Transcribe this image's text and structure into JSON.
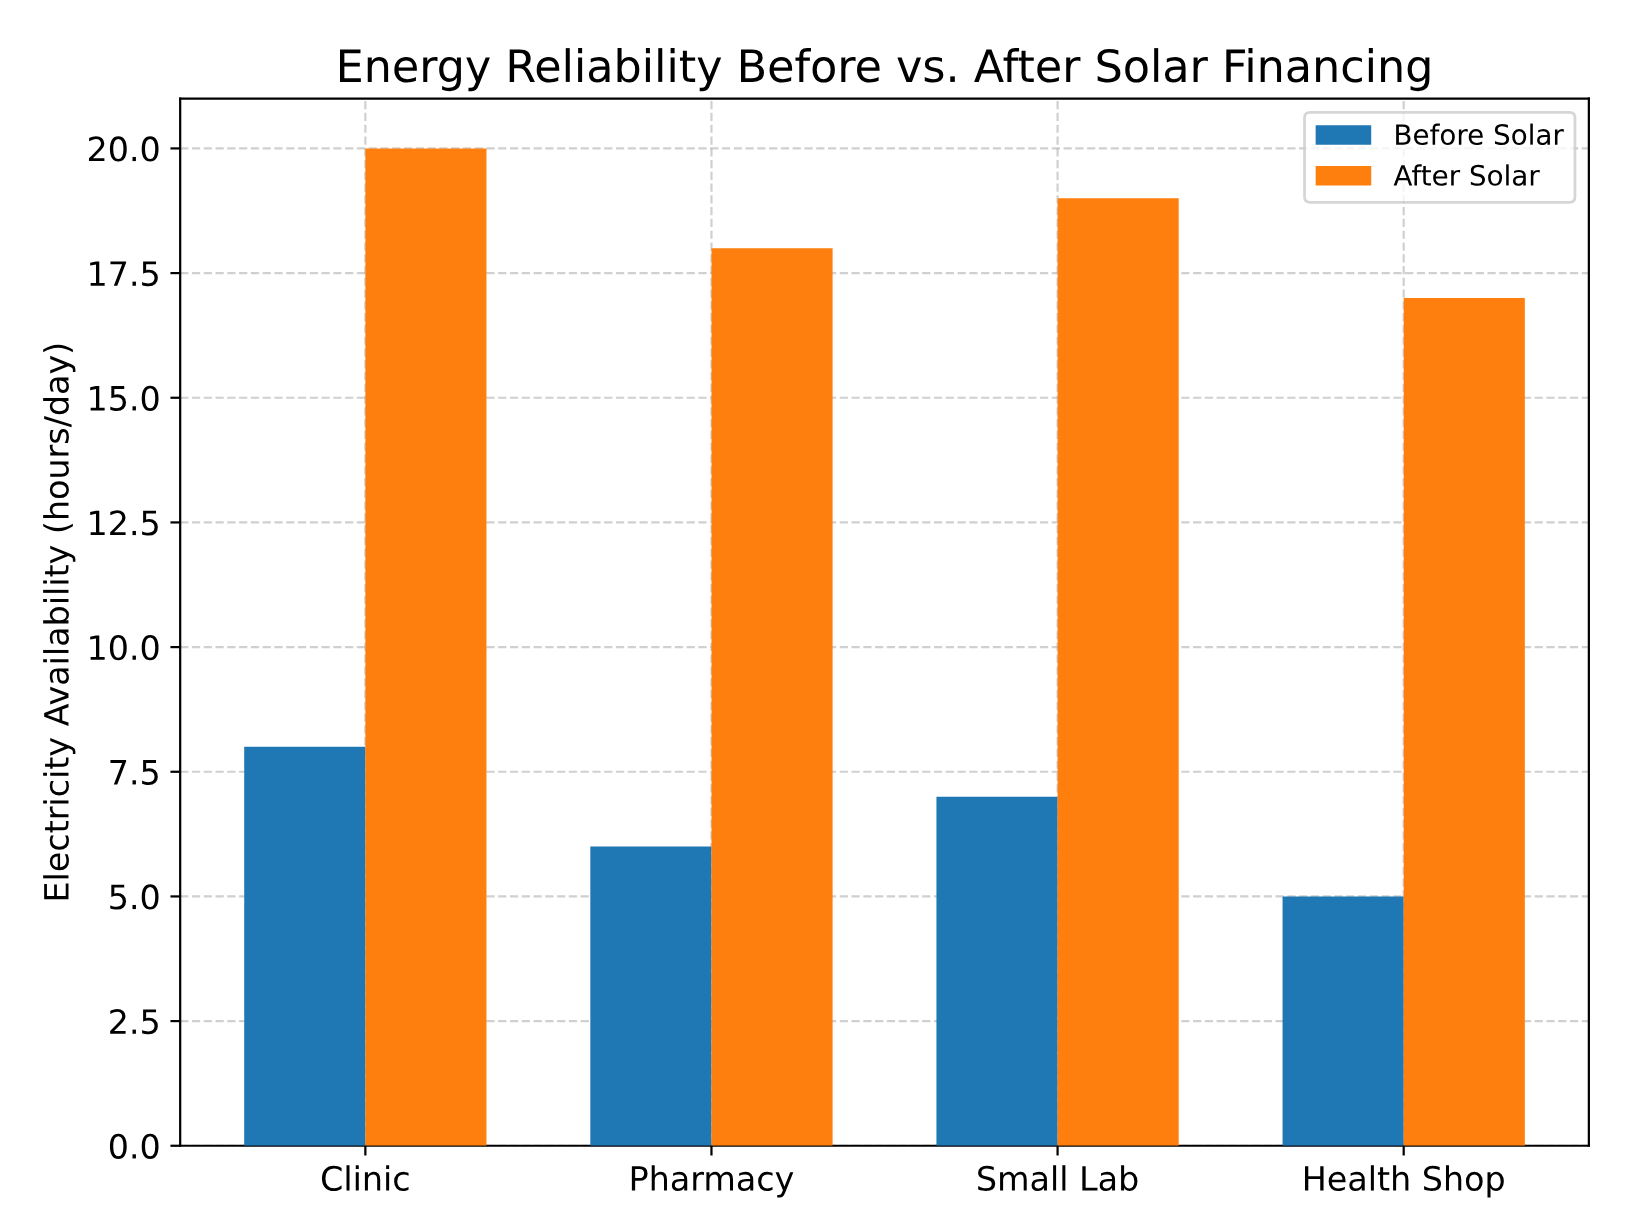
{
  "chart_data": {
    "type": "bar",
    "title": "Energy Reliability Before vs. After Solar Financing",
    "ylabel": "Electricity Availability (hours/day)",
    "categories": [
      "Clinic",
      "Pharmacy",
      "Small Lab",
      "Health Shop"
    ],
    "series": [
      {
        "name": "Before Solar",
        "color": "#1f77b4",
        "values": [
          8,
          6,
          7,
          5
        ]
      },
      {
        "name": "After Solar",
        "color": "#ff7f0e",
        "values": [
          20,
          18,
          19,
          17
        ]
      }
    ],
    "ylim": [
      0,
      21
    ],
    "yticks": [
      {
        "value": 0,
        "label": "0.0"
      },
      {
        "value": 2.5,
        "label": "2.5"
      },
      {
        "value": 5,
        "label": "5.0"
      },
      {
        "value": 7.5,
        "label": "7.5"
      },
      {
        "value": 10,
        "label": "10.0"
      },
      {
        "value": 12.5,
        "label": "12.5"
      },
      {
        "value": 15,
        "label": "15.0"
      },
      {
        "value": 17.5,
        "label": "17.5"
      },
      {
        "value": 20,
        "label": "20.0"
      }
    ],
    "grid": true,
    "legend": "top right"
  }
}
